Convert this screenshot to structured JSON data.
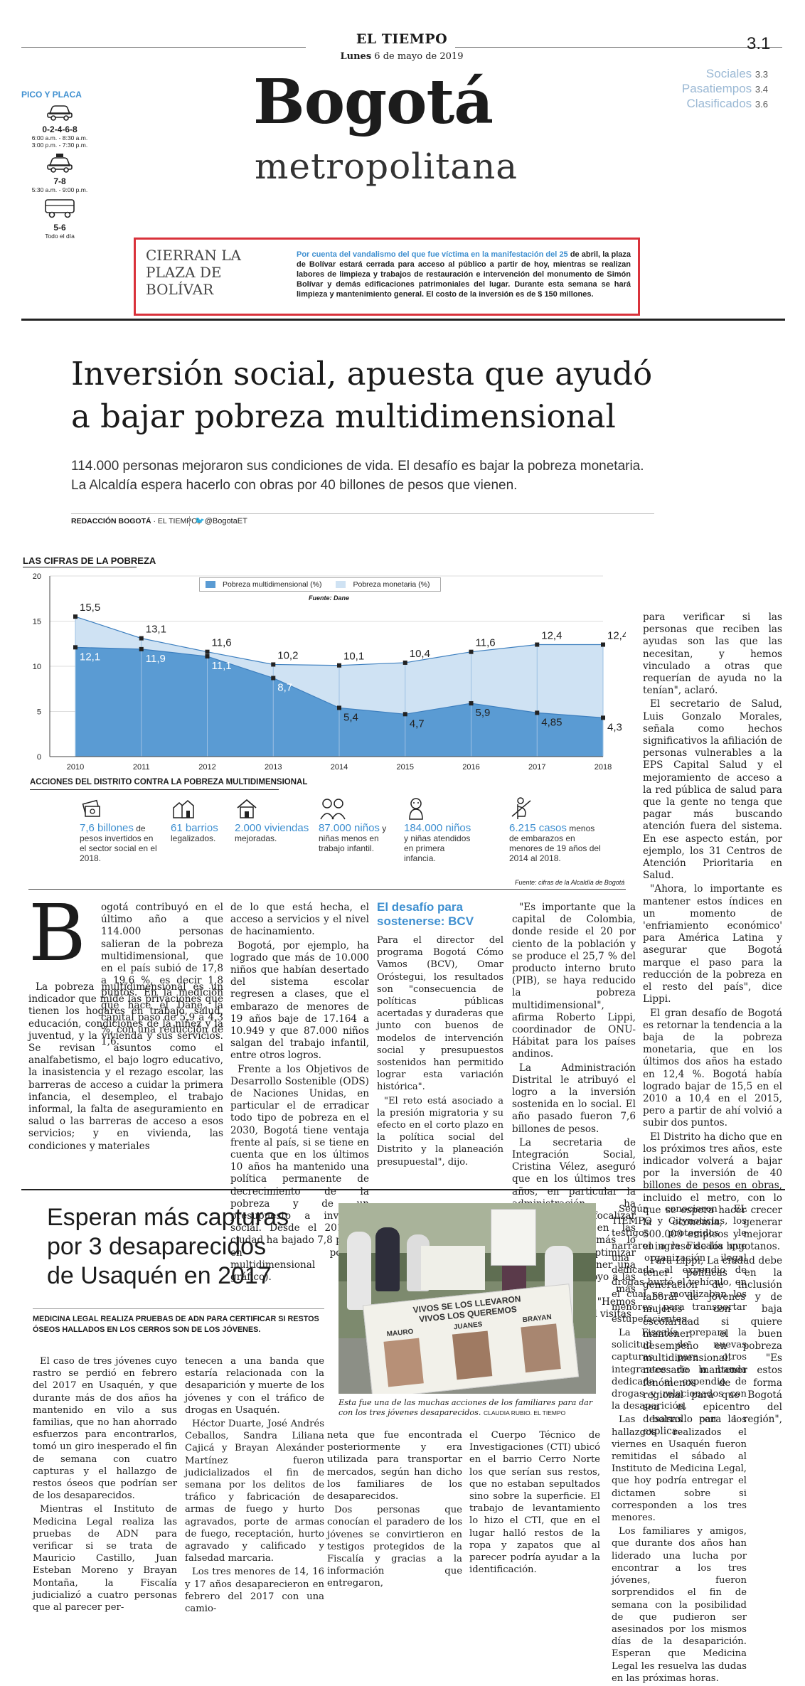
{
  "masthead": {
    "paper": "EL TIEMPO",
    "date_prefix": "Lunes",
    "date_rest": "6 de mayo de 2019",
    "page_number": "3.1",
    "section_title": "Bogotá",
    "section_subtitle": "metropolitana"
  },
  "index": [
    {
      "label": "Sociales",
      "page": "3.3"
    },
    {
      "label": "Pasatiempos",
      "page": "3.4"
    },
    {
      "label": "Clasificados",
      "page": "3.6"
    }
  ],
  "pico_placa": {
    "title": "PICO Y PLACA",
    "items": [
      {
        "icon": "car-icon",
        "plates": "0-2-4-6-8",
        "hours": "6:00 a.m. - 8:30 a.m.",
        "hours2": "3:00 p.m. - 7:30 p.m."
      },
      {
        "icon": "taxi-icon",
        "plates": "7-8",
        "hours": "5:30 a.m. - 9:00 p.m.",
        "hours2": ""
      },
      {
        "icon": "truck-icon",
        "plates": "5-6",
        "hours": "Todo el día",
        "hours2": ""
      }
    ]
  },
  "notice": {
    "title_lines": [
      "CIERRAN LA",
      "PLAZA DE",
      "BOLÍVAR"
    ],
    "lead": "Por cuenta del vandalismo del que fue víctima en la manifestación del 25",
    "body": "de abril, la plaza de Bolívar estará cerrada para acceso al público a partir de hoy, mientras se realizan labores de limpieza y trabajos de restauración e intervención del monumento de Simón Bolívar y demás edificaciones patrimoniales del lugar. Durante esta semana se hará limpieza y mantenimiento general. El costo de la inversión es de $ 150 millones."
  },
  "main_article": {
    "headline_line1": "Inversión social, apuesta que ayudó",
    "headline_line2": "a bajar pobreza multidimensional",
    "subhead": "114.000 personas mejoraron sus condiciones de vida. El desafío es bajar la pobreza monetaria. La Alcaldía espera hacerlo con obras por 40 billones de pesos que vienen.",
    "byline": "REDACCIÓN BOGOTÁ",
    "byline_org": "· EL TIEMPO",
    "twitter": "@BogotaET",
    "drop_cap": "B",
    "col1": [
      "ogotá contribuyó en el último año a que 114.000 personas salieran de la pobreza multidimensional, que en el país subió de 17,8 a 19,6 %, es decir 1,8 puntos. En la medición que hace el Dane, la capital pasó de 5,9 a 4,3 %, con una reducción de 1,6.",
      "La pobreza multidimensional es un indicador que mide las privaciones que tienen los hogares en trabajo, salud, educación, condiciones de la niñez y la juventud, y la vivienda y sus servicios. Se revisan asuntos como el analfabetismo, el bajo logro educativo, la inasistencia y el rezago escolar, las barreras de acceso a cuidar la primera infancia, el desempleo, el trabajo informal, la falta de aseguramiento en salud o las barreras de acceso a esos servicios; y en vivienda, las condiciones y materiales"
    ],
    "col2": [
      "de lo que está hecha, el acceso a servicios y el nivel de hacinamiento.",
      "Bogotá, por ejemplo, ha logrado que más de 10.000 niños que habían desertado del sistema escolar regresen a clases, que el embarazo de menores de 19 años baje de 17.164 a 10.949 y que 87.000 niños salgan del trabajo infantil, entre otros logros.",
      "Frente a los Objetivos de Desarrollo Sostenible (ODS) de Naciones Unidas, en particular el de erradicar todo tipo de pobreza en el 2030, Bogotá tiene ventaja frente al país, si se tiene en cuenta que en los últimos 10 años ha mantenido una política permanente de decrecimiento de la pobreza y de un presupuesto a inversión social. Desde el 2010, la ciudad ha bajado 7,8 puntos en pobreza multidimensional (vea gráfico)."
    ],
    "box_title": "El desafío para sostenerse: BCV",
    "col3": [
      "Para el director del programa Bogotá Cómo Vamos (BCV), Omar Oróstegui, los resultados son \"consecuencia de políticas públicas acertadas y duraderas que junto con buenos de modelos de intervención social y presupuestos sostenidos han permitido lograr esta variación histórica\".",
      "\"El reto está asociado a la presión migratoria y su efecto en el corto plazo en la política social del Distrito y la planeación presupuestal\", dijo."
    ],
    "col4": [
      "\"Es importante que la capital de Colombia, donde reside el 20 por ciento de la población y se produce el 25,7 % del producto interno bruto (PIB), se haya reducido la pobreza multidimensional\", afirma Roberto Lippi, coordinador de ONU-Hábitat para los países andinos.",
      "La Administración Distrital le atribuyó el logro a la inversión sostenida en lo social. El año pasado fueron 7,6 billones de pesos.",
      "La secretaria de Integración Social, Cristina Vélez, aseguró que en los últimos tres años, en particular la administración ha trabajado en focalizar los subsidios en las personas que más lo necesitan para optimizar la inversión y tener una mejor red de apoyo a las poblaciones más vulnerables. \"Hemos realizado 100 mil visitas"
    ],
    "col5": [
      "para verificar si las personas que reciben las ayudas son las que las necesitan, y hemos vinculado a otras que requerían de ayuda no la tenían\", aclaró.",
      "El secretario de Salud, Luis Gonzalo Morales, señala como hechos significativos la afiliación de personas vulnerables a la EPS Capital Salud y el mejoramiento de acceso a la red pública de salud para que la gente no tenga que pagar más buscando atención fuera del sistema. En ese aspecto están, por ejemplo, los 31 Centros de Atención Prioritaria en Salud.",
      "\"Ahora, lo importante es mantener estos índices en un momento de 'enfriamiento económico' para América Latina y asegurar que Bogotá marque el paso para la reducción de la pobreza en el resto del país\", dice Lippi.",
      "El gran desafío de Bogotá es retornar la tendencia a la baja de la pobreza monetaria, que en los últimos dos años ha estado en 12,4 %. Bogotá había logrado bajar de 15,5 en el 2010 a 10,4 en el 2015, pero a partir de ahí volvió a subir dos puntos.",
      "El Distrito ha dicho que en los próximos tres años, este indicador volverá a bajar por la inversión de 40 billones de pesos en obras, incluido el metro, con lo que se espera hacer crecer la economía, generar 500.000 empleos y mejorar el ingreso de los bogotanos.",
      "Para Lippi, La ciudad debe tener políticas en la generación de inclusión laboral de jóvenes y de mujeres con baja escolaridad si quiere mantener el buen desempeño en pobreza multidimensional. \"Es necesario mantener estos fenómenos de forma regional para que Bogotá sea el epicentro del desarrollo para la región\", explica."
    ]
  },
  "chart_data": {
    "type": "area",
    "title": "LAS CIFRAS DE LA POBREZA",
    "source": "Fuente: Dane",
    "x": [
      2010,
      2011,
      2012,
      2013,
      2014,
      2015,
      2016,
      2017,
      2018
    ],
    "x_labels": [
      "2010",
      "2011",
      "2012",
      "2013",
      "2014",
      "2015",
      "2016",
      "2017",
      "2018"
    ],
    "ylim": [
      0,
      20
    ],
    "y_ticks": [
      "0",
      "5",
      "10",
      "15",
      "20"
    ],
    "legend_position": "top-center",
    "series": [
      {
        "name": "Pobreza multidimensional (%)",
        "values": [
          12.1,
          11.9,
          11.1,
          8.7,
          5.4,
          4.7,
          5.9,
          4.85,
          4.3
        ],
        "labels": [
          "12,1",
          "11,9",
          "11,1",
          "8,7",
          "5,4",
          "4,7",
          "5,9",
          "4,85",
          "4,3"
        ],
        "color": "#5a9bd3"
      },
      {
        "name": "Pobreza monetaria (%)",
        "values": [
          15.5,
          13.1,
          11.6,
          10.2,
          10.1,
          10.4,
          11.6,
          12.4,
          12.4
        ],
        "labels": [
          "15,5",
          "13,1",
          "11,6",
          "10,2",
          "10,1",
          "10,4",
          "11,6",
          "12,4",
          "12,4"
        ],
        "color": "#cfe2f3"
      }
    ]
  },
  "actions": {
    "title": "ACCIONES DEL DISTRITO CONTRA LA POBREZA MULTIDIMENSIONAL",
    "items": [
      {
        "icon": "money-icon",
        "value": "7,6 billones",
        "text": "de pesos invertidos en el sector social en el 2018."
      },
      {
        "icon": "houses-icon",
        "value": "61 barrios",
        "text": "legalizados."
      },
      {
        "icon": "home-icon",
        "value": "2.000 viviendas",
        "text": "mejoradas."
      },
      {
        "icon": "children-icon",
        "value": "87.000 niños",
        "text": "y niñas menos en trabajo infantil."
      },
      {
        "icon": "baby-icon",
        "value": "184.000 niños",
        "text": "y niñas atendidos en primera infancia."
      },
      {
        "icon": "pregnancy-icon",
        "value": "6.215 casos",
        "text": "menos de embarazos en menores de 19 años del 2014 al 2018."
      }
    ],
    "source": "Fuente: cifras de la Alcaldía de Bogotá"
  },
  "second_article": {
    "headline_lines": [
      "Esperan más capturas",
      "por 3 desaparecidos",
      "de Usaquén en 2017"
    ],
    "kicker": "MEDICINA LEGAL REALIZA PRUEBAS DE ADN PARA CERTIFICAR SI RESTOS ÓSEOS HALLADOS EN LOS CERROS SON DE LOS JÓVENES.",
    "col1": [
      "El caso de tres jóvenes cuyo rastro se perdió en febrero del 2017 en Usaquén, y que durante más de dos años ha mantenido en vilo a sus familias, que no han ahorrado esfuerzos para encontrarlos, tomó un giro inesperado el fin de semana con cuatro capturas y el hallazgo de restos óseos que podrían ser de los desaparecidos.",
      "Mientras el Instituto de Medicina Legal realiza las pruebas de ADN para verificar si se trata de Mauricio Castillo, Juan Esteban Moreno y Brayan Montaña, la Fiscalía judicializó a cuatro personas que al parecer per-"
    ],
    "col2": [
      "tenecen a una banda que estaría relacionada con la desaparición y muerte de los jóvenes y con el tráfico de drogas en Usaquén.",
      "Héctor Duarte, José Andrés Ceballos, Sandra Liliana Cajicá y Brayan Alexánder Martínez fueron judicializados el fin de semana por los delitos de tráfico y fabricación de armas de fuego y hurto agravados, porte de armas de fuego, receptación, hurto agravado y calificado y falsedad marcaria.",
      "Los tres menores de 14, 16 y 17 años desaparecieron en febrero del 2017 con una camio-"
    ],
    "photo_caption": "Esta fue una de las muchas acciones de los familiares para dar con los tres jóvenes desaparecidos.",
    "photo_credit": "CLAUDIA RUBIO. EL TIEMPO",
    "photo_banner_line1": "VIVOS SE LOS LLEVARON",
    "photo_banner_line2": "VIVOS LOS QUEREMOS",
    "photo_names": [
      "MAURO",
      "JUANES",
      "BRAYAN"
    ],
    "col3": [
      "neta que fue encontrada posteriormente y era utilizada para transportar mercados, según han dicho los familiares de los desaparecidos.",
      "Dos personas que conocían el paradero de los jóvenes se convirtieron en testigos protegidos de la Fiscalía y gracias a la información que entregaron,"
    ],
    "col4": [
      "el Cuerpo Técnico de Investigaciones (CTI) ubicó en el barrio Cerro Norte los que serían sus restos, que no estaban sepultados sino sobre la superficie. El trabajo de levantamiento lo hizo el CTI, que en el lugar halló restos de la ropa y zapatos que al parecer podría ayudar a la identificación."
    ],
    "col5": [
      "Según conocieron EL TIEMPO y Citynoticias, los testigos protegidos le narraron a la Fiscalía que una organización ilegal dedicada al expendio de drogas hurtó el vehículo, en el cual se movilizaban los menores, para transportar estupefacientes.",
      "La Fiscalía prepara la solicitud de nuevas capturas para otros integrantes de la banda dedicada al expendio de drogas y relacionados con la desaparición.",
      "Las bolsas con los hallazgos realizados el viernes en Usaquén fueron remitidas el sábado al Instituto de Medicina Legal, que hoy podría entregar el dictamen sobre si corresponden a los tres menores.",
      "Los familiares y amigos, que durante dos años han liderado una lucha por encontrar a los tres jóvenes, fueron sorprendidos el fin de semana con la posibilidad de que pudieron ser asesinados por los mismos días de la desaparición. Esperan que Medicina Legal les resuelva las dudas en las próximas horas."
    ]
  }
}
